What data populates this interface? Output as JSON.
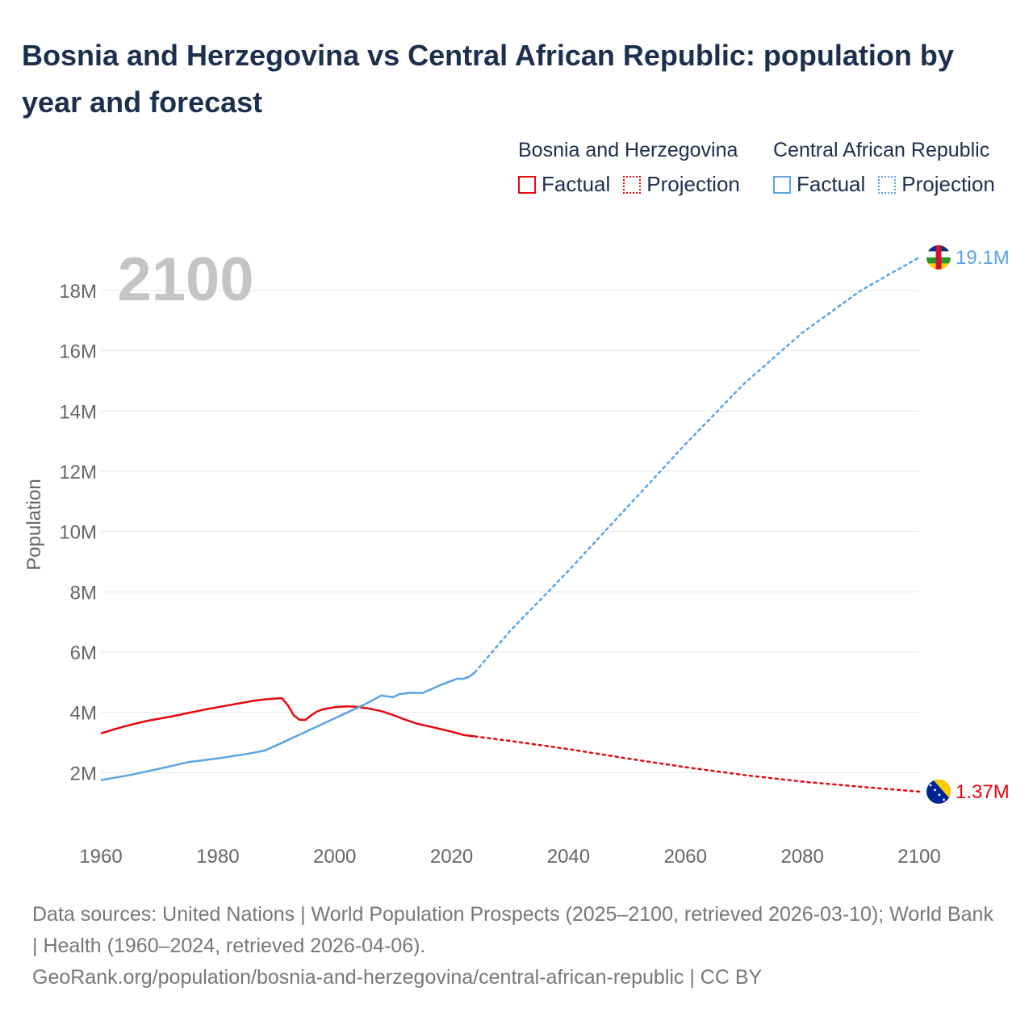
{
  "title": "Bosnia and Herzegovina vs Central African Republic: population by year and forecast",
  "legend": {
    "groups": [
      {
        "name": "Bosnia and Herzegovina",
        "factual": "Factual",
        "projection": "Projection"
      },
      {
        "name": "Central African Republic",
        "factual": "Factual",
        "projection": "Projection"
      }
    ]
  },
  "colors": {
    "bosnia": "#e8060b",
    "car": "#5aa4e3",
    "grid": "#e6e6e6",
    "axis_text": "#666666",
    "year_label": "#c4c4c4"
  },
  "footer": {
    "sources": "Data sources: United Nations | World Population Prospects (2025–2100, retrieved 2026-03-10); World Bank | Health (1960–2024, retrieved 2026-04-06).",
    "url": "GeoRank.org/population/bosnia-and-herzegovina/central-african-republic | CC BY"
  },
  "chart_data": {
    "type": "line",
    "title": "Bosnia and Herzegovina vs Central African Republic: population by year and forecast",
    "current_year_label": "2100",
    "xlabel": "",
    "ylabel": "Population",
    "xlim": [
      1960,
      2100
    ],
    "ylim": [
      0,
      19500000
    ],
    "x_ticks": [
      1960,
      1980,
      2000,
      2020,
      2040,
      2060,
      2080,
      2100
    ],
    "x_tick_labels": [
      "1960",
      "1980",
      "2000",
      "2020",
      "2040",
      "2060",
      "2080",
      "2100"
    ],
    "y_ticks": [
      2000000,
      4000000,
      6000000,
      8000000,
      10000000,
      12000000,
      14000000,
      16000000,
      18000000
    ],
    "y_tick_labels": [
      "2M",
      "4M",
      "6M",
      "8M",
      "10M",
      "12M",
      "14M",
      "16M",
      "18M"
    ],
    "series": [
      {
        "name": "Bosnia and Herzegovina",
        "color": "#e8060b",
        "end_label": "1.37M",
        "factual": [
          [
            1960,
            3300000
          ],
          [
            1962,
            3420000
          ],
          [
            1964,
            3530000
          ],
          [
            1966,
            3630000
          ],
          [
            1968,
            3720000
          ],
          [
            1970,
            3790000
          ],
          [
            1972,
            3860000
          ],
          [
            1974,
            3940000
          ],
          [
            1976,
            4020000
          ],
          [
            1978,
            4100000
          ],
          [
            1980,
            4170000
          ],
          [
            1982,
            4240000
          ],
          [
            1984,
            4310000
          ],
          [
            1986,
            4380000
          ],
          [
            1988,
            4430000
          ],
          [
            1990,
            4460000
          ],
          [
            1991,
            4470000
          ],
          [
            1992,
            4230000
          ],
          [
            1993,
            3900000
          ],
          [
            1994,
            3750000
          ],
          [
            1995,
            3750000
          ],
          [
            1996,
            3900000
          ],
          [
            1997,
            4030000
          ],
          [
            1998,
            4100000
          ],
          [
            2000,
            4170000
          ],
          [
            2002,
            4200000
          ],
          [
            2004,
            4180000
          ],
          [
            2006,
            4120000
          ],
          [
            2008,
            4040000
          ],
          [
            2010,
            3910000
          ],
          [
            2012,
            3760000
          ],
          [
            2014,
            3630000
          ],
          [
            2016,
            3540000
          ],
          [
            2018,
            3450000
          ],
          [
            2020,
            3360000
          ],
          [
            2022,
            3250000
          ],
          [
            2024,
            3200000
          ]
        ],
        "projection": [
          [
            2024,
            3200000
          ],
          [
            2030,
            3050000
          ],
          [
            2040,
            2780000
          ],
          [
            2050,
            2470000
          ],
          [
            2060,
            2180000
          ],
          [
            2070,
            1920000
          ],
          [
            2080,
            1700000
          ],
          [
            2090,
            1530000
          ],
          [
            2100,
            1370000
          ]
        ]
      },
      {
        "name": "Central African Republic",
        "color": "#5aa4e3",
        "end_label": "19.1M",
        "factual": [
          [
            1960,
            1750000
          ],
          [
            1965,
            1920000
          ],
          [
            1970,
            2130000
          ],
          [
            1975,
            2350000
          ],
          [
            1980,
            2470000
          ],
          [
            1985,
            2620000
          ],
          [
            1988,
            2730000
          ],
          [
            1990,
            2900000
          ],
          [
            1995,
            3350000
          ],
          [
            2000,
            3800000
          ],
          [
            2005,
            4250000
          ],
          [
            2008,
            4560000
          ],
          [
            2010,
            4500000
          ],
          [
            2011,
            4600000
          ],
          [
            2013,
            4650000
          ],
          [
            2015,
            4640000
          ],
          [
            2018,
            4900000
          ],
          [
            2021,
            5120000
          ],
          [
            2022,
            5110000
          ],
          [
            2023,
            5180000
          ],
          [
            2024,
            5330000
          ]
        ],
        "projection": [
          [
            2024,
            5330000
          ],
          [
            2030,
            6700000
          ],
          [
            2040,
            8700000
          ],
          [
            2050,
            10800000
          ],
          [
            2060,
            12900000
          ],
          [
            2070,
            14900000
          ],
          [
            2080,
            16600000
          ],
          [
            2090,
            18000000
          ],
          [
            2100,
            19100000
          ]
        ]
      }
    ]
  }
}
